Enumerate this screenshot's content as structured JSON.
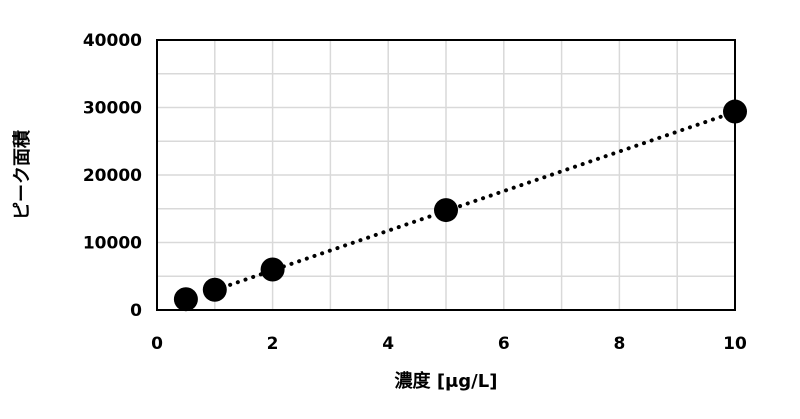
{
  "chart_data": {
    "type": "scatter",
    "title": "",
    "xlabel": "濃度 [μg/L]",
    "ylabel": "ピーク面積",
    "xlim": [
      0,
      10
    ],
    "ylim": [
      0,
      40000
    ],
    "xticks": [
      "0",
      "2",
      "4",
      "6",
      "8",
      "10"
    ],
    "yticks": [
      "0",
      "10000",
      "20000",
      "30000",
      "40000"
    ],
    "grid": true,
    "legend": "none",
    "series": [
      {
        "x": [
          0.5,
          1,
          2,
          5,
          10
        ],
        "y": [
          1600,
          3000,
          6000,
          14800,
          29400
        ],
        "marker_color": "#000000"
      }
    ],
    "trendline": {
      "type": "linear",
      "style": "dotted",
      "x": [
        1,
        10
      ],
      "y": [
        2950,
        29350
      ]
    }
  }
}
